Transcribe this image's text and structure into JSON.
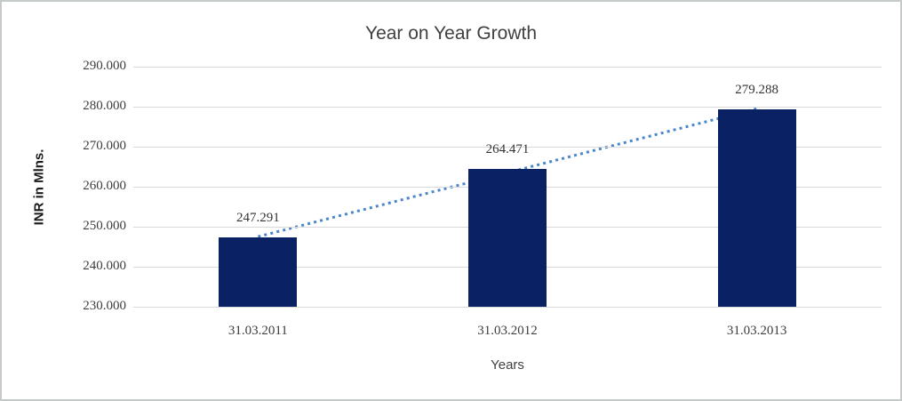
{
  "chart_data": {
    "type": "bar",
    "title": "Year on Year Growth",
    "xlabel": "Years",
    "ylabel": "INR in Mlns.",
    "categories": [
      "31.03.2011",
      "31.03.2012",
      "31.03.2013"
    ],
    "values": [
      247.291,
      264.471,
      279.288
    ],
    "value_labels": [
      "247.291",
      "264.471",
      "279.288"
    ],
    "ylim": [
      230,
      290
    ],
    "ytick_step": 10,
    "yticks": [
      {
        "value": 230,
        "label": "230.000"
      },
      {
        "value": 240,
        "label": "240.000"
      },
      {
        "value": 250,
        "label": "250.000"
      },
      {
        "value": 260,
        "label": "260.000"
      },
      {
        "value": 270,
        "label": "270.000"
      },
      {
        "value": 280,
        "label": "280.000"
      },
      {
        "value": 290,
        "label": "290.000"
      }
    ],
    "grid": true,
    "legend_position": "none",
    "trendline": {
      "type": "linear",
      "style": "dotted",
      "from_category_index": 0,
      "to_category_index": 2
    },
    "colors": {
      "bar": "#0a2164",
      "trendline": "#4a86c8",
      "gridline": "#d9d9d9",
      "title_text": "#404040",
      "tick_text": "#3d3d3d",
      "background": "#ffffff",
      "frame_border": "#c6cbca"
    }
  }
}
